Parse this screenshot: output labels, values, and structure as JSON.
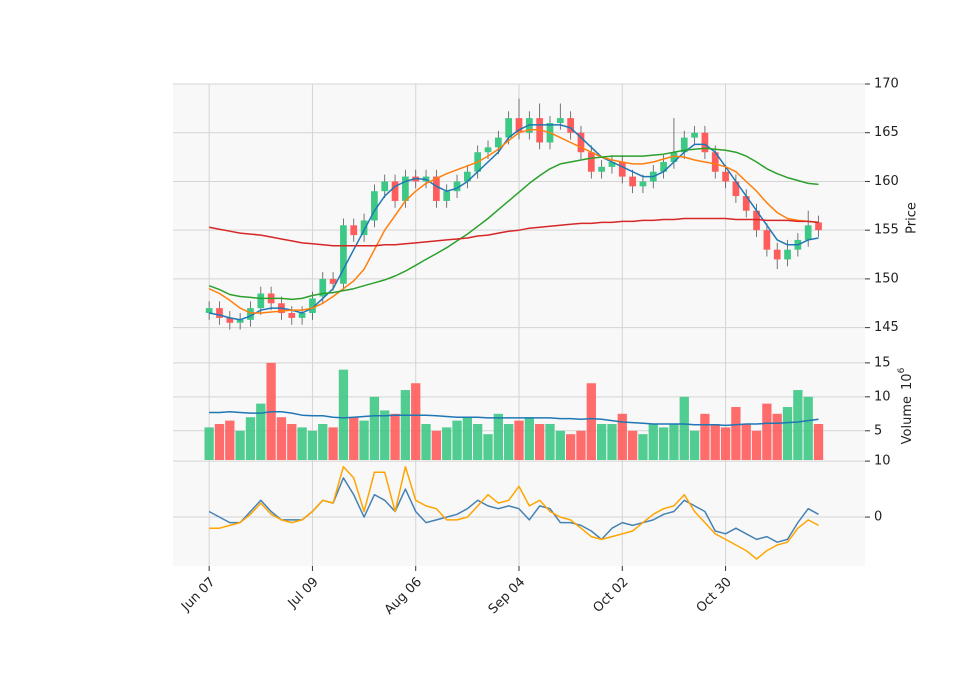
{
  "chart_data": {
    "type": "candlestick",
    "xlim": [
      -3.5,
      63.5
    ],
    "xticks": [
      {
        "value": 0,
        "label": "Jun 07"
      },
      {
        "value": 10,
        "label": "Jul 09"
      },
      {
        "value": 20,
        "label": "Aug 06"
      },
      {
        "value": 30,
        "label": "Sep 04"
      },
      {
        "value": 40,
        "label": "Oct 02"
      },
      {
        "value": 50,
        "label": "Oct 30"
      }
    ],
    "ylabel": "Price",
    "ylim": [
      142.5,
      170
    ],
    "yticks": [
      145,
      150,
      155,
      160,
      165,
      170
    ],
    "grid": true,
    "up_color": "#3ec886",
    "down_color": "#ff5c5c",
    "open": [
      146.5,
      147,
      146,
      145.5,
      145.8,
      147,
      148.5,
      147.5,
      146.5,
      146,
      146.5,
      148.2,
      150,
      149.5,
      155.5,
      154.5,
      156,
      159,
      160,
      158,
      160.5,
      160,
      160.5,
      158,
      159,
      160,
      161,
      163,
      163.5,
      164.5,
      166.5,
      165,
      166.5,
      164,
      166,
      166.5,
      165,
      163,
      161,
      161.5,
      162,
      160.5,
      159.5,
      160,
      161,
      162,
      163,
      164.5,
      165,
      163,
      161,
      160,
      158.5,
      157,
      155,
      153,
      152,
      153,
      154,
      155.8
    ],
    "high": [
      147.7,
      147.7,
      146.7,
      146.5,
      147.7,
      149.2,
      149.2,
      148.2,
      147.2,
      147.2,
      148.7,
      150.7,
      150.7,
      156.2,
      156.2,
      156.7,
      159.7,
      160.7,
      160.7,
      161.2,
      161.2,
      161.2,
      161.2,
      159.7,
      160.7,
      161.7,
      163.7,
      164.2,
      165.2,
      167.2,
      168.5,
      167.2,
      168,
      166.7,
      168,
      167.2,
      165.7,
      163.7,
      162.2,
      162.7,
      162.7,
      161.2,
      160.7,
      161.7,
      162.7,
      166.5,
      165.2,
      165.7,
      165.7,
      163.7,
      161.7,
      160.7,
      159.2,
      157.7,
      155.7,
      153.7,
      154,
      154.7,
      157,
      156.5
    ],
    "low": [
      145.8,
      145.3,
      144.8,
      144.8,
      145.1,
      146.3,
      146.8,
      145.8,
      145.3,
      145.3,
      145.8,
      147.5,
      148.8,
      148.8,
      153.8,
      153.8,
      155.3,
      158.3,
      157.3,
      157.3,
      159.3,
      159.3,
      157.3,
      157.3,
      158.3,
      159.3,
      160.3,
      162.3,
      162.8,
      163.8,
      164.3,
      164.3,
      163.3,
      163.3,
      165.3,
      164.3,
      162.3,
      160.3,
      160.3,
      160.8,
      159.8,
      158.8,
      158.8,
      159.3,
      160.3,
      161.3,
      162.3,
      163.8,
      162.3,
      160.3,
      159.3,
      157.8,
      156.3,
      154.3,
      152.3,
      151,
      151.3,
      152.3,
      153.3,
      154.3
    ],
    "close": [
      147,
      146,
      145.5,
      145.8,
      147,
      148.5,
      147.5,
      146.5,
      146,
      146.5,
      148,
      150,
      149.5,
      155.5,
      154.5,
      156,
      159,
      160,
      158,
      160.5,
      160,
      160.5,
      158,
      159,
      160,
      161,
      163,
      163.5,
      164.5,
      166.5,
      165,
      166.5,
      164,
      166,
      166.5,
      165,
      163,
      161,
      161.5,
      162,
      160.5,
      159.5,
      160,
      161,
      162,
      163,
      164.5,
      165,
      163,
      161,
      160,
      158.5,
      157,
      155,
      153,
      152,
      153,
      154,
      155.5,
      155
    ],
    "moving_averages": [
      {
        "color": "#1f77b4",
        "values": [
          146.5,
          146.3,
          146,
          145.8,
          146.2,
          146.8,
          147,
          147,
          146.8,
          146.5,
          147,
          148,
          149,
          151,
          153,
          155,
          157,
          158.5,
          159.5,
          160,
          160.3,
          160.2,
          159.5,
          159,
          159.3,
          160,
          161,
          162,
          163,
          164.5,
          165.3,
          165.8,
          165.8,
          165.8,
          165.8,
          165.5,
          164.5,
          163.5,
          162.5,
          162,
          161.5,
          161,
          160.5,
          160.5,
          161,
          162,
          163,
          163.8,
          163.8,
          163,
          161.5,
          160,
          158.5,
          157,
          155.5,
          154,
          153.5,
          153.5,
          154,
          154.2
        ]
      },
      {
        "color": "#ff7f0e",
        "values": [
          149,
          148.5,
          147.8,
          147,
          146.5,
          146.5,
          146.6,
          146.7,
          146.8,
          146.8,
          147,
          147.5,
          148.2,
          149,
          149.8,
          151,
          153,
          155,
          156.5,
          158,
          159,
          159.8,
          160.3,
          160.8,
          161.2,
          161.6,
          162,
          162.6,
          163.3,
          164.2,
          165,
          165.3,
          165.3,
          165,
          164.5,
          164,
          163.5,
          163,
          162.5,
          162.2,
          162,
          161.8,
          161.8,
          162,
          162.3,
          162.6,
          162.5,
          162.2,
          162,
          161.8,
          161.5,
          161,
          160,
          159,
          157.8,
          156.8,
          156.2,
          156,
          155.9,
          155.8
        ]
      },
      {
        "color": "#2ca02c",
        "values": [
          149.3,
          148.9,
          148.4,
          148.2,
          148.1,
          148,
          148,
          148,
          147.9,
          148,
          148.3,
          148.5,
          148.6,
          148.8,
          149,
          149.3,
          149.6,
          149.9,
          150.3,
          150.8,
          151.4,
          152,
          152.6,
          153.2,
          153.9,
          154.6,
          155.4,
          156.2,
          157.1,
          158,
          158.9,
          159.8,
          160.6,
          161.3,
          161.8,
          162,
          162.2,
          162.4,
          162.5,
          162.6,
          162.6,
          162.6,
          162.6,
          162.7,
          162.8,
          163,
          163.2,
          163.3,
          163.4,
          163.3,
          163.2,
          163,
          162.6,
          162,
          161.3,
          160.8,
          160.4,
          160.1,
          159.8,
          159.7
        ]
      },
      {
        "color": "#d62728",
        "values": [
          155.3,
          155.1,
          154.9,
          154.7,
          154.6,
          154.5,
          154.3,
          154.1,
          153.9,
          153.7,
          153.6,
          153.5,
          153.4,
          153.4,
          153.4,
          153.4,
          153.4,
          153.5,
          153.5,
          153.6,
          153.7,
          153.8,
          153.9,
          154,
          154.1,
          154.2,
          154.4,
          154.5,
          154.7,
          154.9,
          155,
          155.2,
          155.3,
          155.4,
          155.5,
          155.6,
          155.7,
          155.7,
          155.8,
          155.8,
          155.9,
          155.9,
          156,
          156,
          156.1,
          156.1,
          156.2,
          156.2,
          156.2,
          156.2,
          156.2,
          156.1,
          156.1,
          156.1,
          156,
          156,
          156,
          155.9,
          155.9,
          155.8
        ]
      }
    ],
    "volume": {
      "ylabel": "Volume",
      "offset_base": "10",
      "offset_exponent": "6",
      "ylim": [
        0.7,
        16.6
      ],
      "yticks": [
        5,
        10,
        15
      ],
      "values": [
        5.5,
        6,
        6.5,
        5,
        7,
        9,
        15,
        7,
        6,
        5.5,
        5,
        6,
        5.5,
        14,
        7,
        6.5,
        10,
        8,
        7.5,
        11,
        12,
        6,
        5,
        5.5,
        6.5,
        7,
        6,
        4.5,
        7.5,
        6,
        6.5,
        7,
        6,
        6,
        5,
        4.5,
        5,
        12,
        6,
        6,
        7.5,
        5,
        4.5,
        6,
        5.5,
        6,
        10,
        5,
        7.5,
        6,
        5.5,
        8.5,
        6,
        5,
        9,
        7.5,
        8.5,
        11,
        10,
        6
      ],
      "ma": {
        "color": "#1f77b4",
        "values": [
          7.7,
          7.7,
          7.8,
          7.7,
          7.6,
          7.6,
          7.8,
          7.8,
          7.6,
          7.3,
          7.2,
          7.2,
          7,
          6.9,
          7,
          7.1,
          7.2,
          7.2,
          7.3,
          7.3,
          7.3,
          7.3,
          7.2,
          7.1,
          7,
          7,
          7,
          6.9,
          6.9,
          6.9,
          6.9,
          6.9,
          6.9,
          6.9,
          6.8,
          6.8,
          6.7,
          6.8,
          6.7,
          6.5,
          6.3,
          6.2,
          6.1,
          6,
          6,
          6,
          6,
          5.9,
          5.9,
          5.9,
          5.8,
          5.9,
          6,
          6,
          6.1,
          6.1,
          6.2,
          6.3,
          6.5,
          6.7
        ]
      }
    },
    "oscillator": {
      "ylim": [
        -8.75,
        10.2
      ],
      "yticks": [
        0,
        10
      ],
      "series": [
        {
          "color": "#4682b4",
          "values": [
            1,
            0,
            -1,
            -1,
            1,
            3,
            1,
            -0.5,
            -0.5,
            -0.5,
            1,
            3,
            2.5,
            7,
            4,
            0,
            4,
            3,
            1,
            5,
            1,
            -1,
            -0.5,
            0,
            0.5,
            1.5,
            3,
            2,
            1.5,
            2,
            1.5,
            -0.5,
            2,
            1.5,
            -1,
            -1,
            -1.5,
            -2.5,
            -4,
            -2,
            -1,
            -1.5,
            -1,
            -0.5,
            0.5,
            1,
            3,
            2,
            1,
            -2.5,
            -3,
            -2,
            -3,
            -4,
            -3.5,
            -4.5,
            -4,
            -1,
            1.5,
            0.5
          ]
        },
        {
          "color": "#ffa500",
          "values": [
            -2,
            -2,
            -1.5,
            -1,
            0.5,
            2.5,
            0.5,
            -0.5,
            -1,
            -0.5,
            1,
            3,
            2.5,
            9,
            7,
            1,
            8,
            8,
            1,
            9,
            3,
            2,
            1.5,
            -0.5,
            -0.5,
            0,
            2,
            4,
            2.5,
            3,
            5.5,
            2,
            3,
            1,
            0,
            -0.5,
            -2,
            -3.5,
            -4,
            -3.5,
            -3,
            -2.5,
            -1,
            0.5,
            1.5,
            2,
            4,
            1,
            -1,
            -3,
            -4,
            -5,
            -6,
            -7.5,
            -6,
            -5,
            -4.5,
            -2,
            -0.5,
            -1.5
          ]
        }
      ]
    }
  }
}
